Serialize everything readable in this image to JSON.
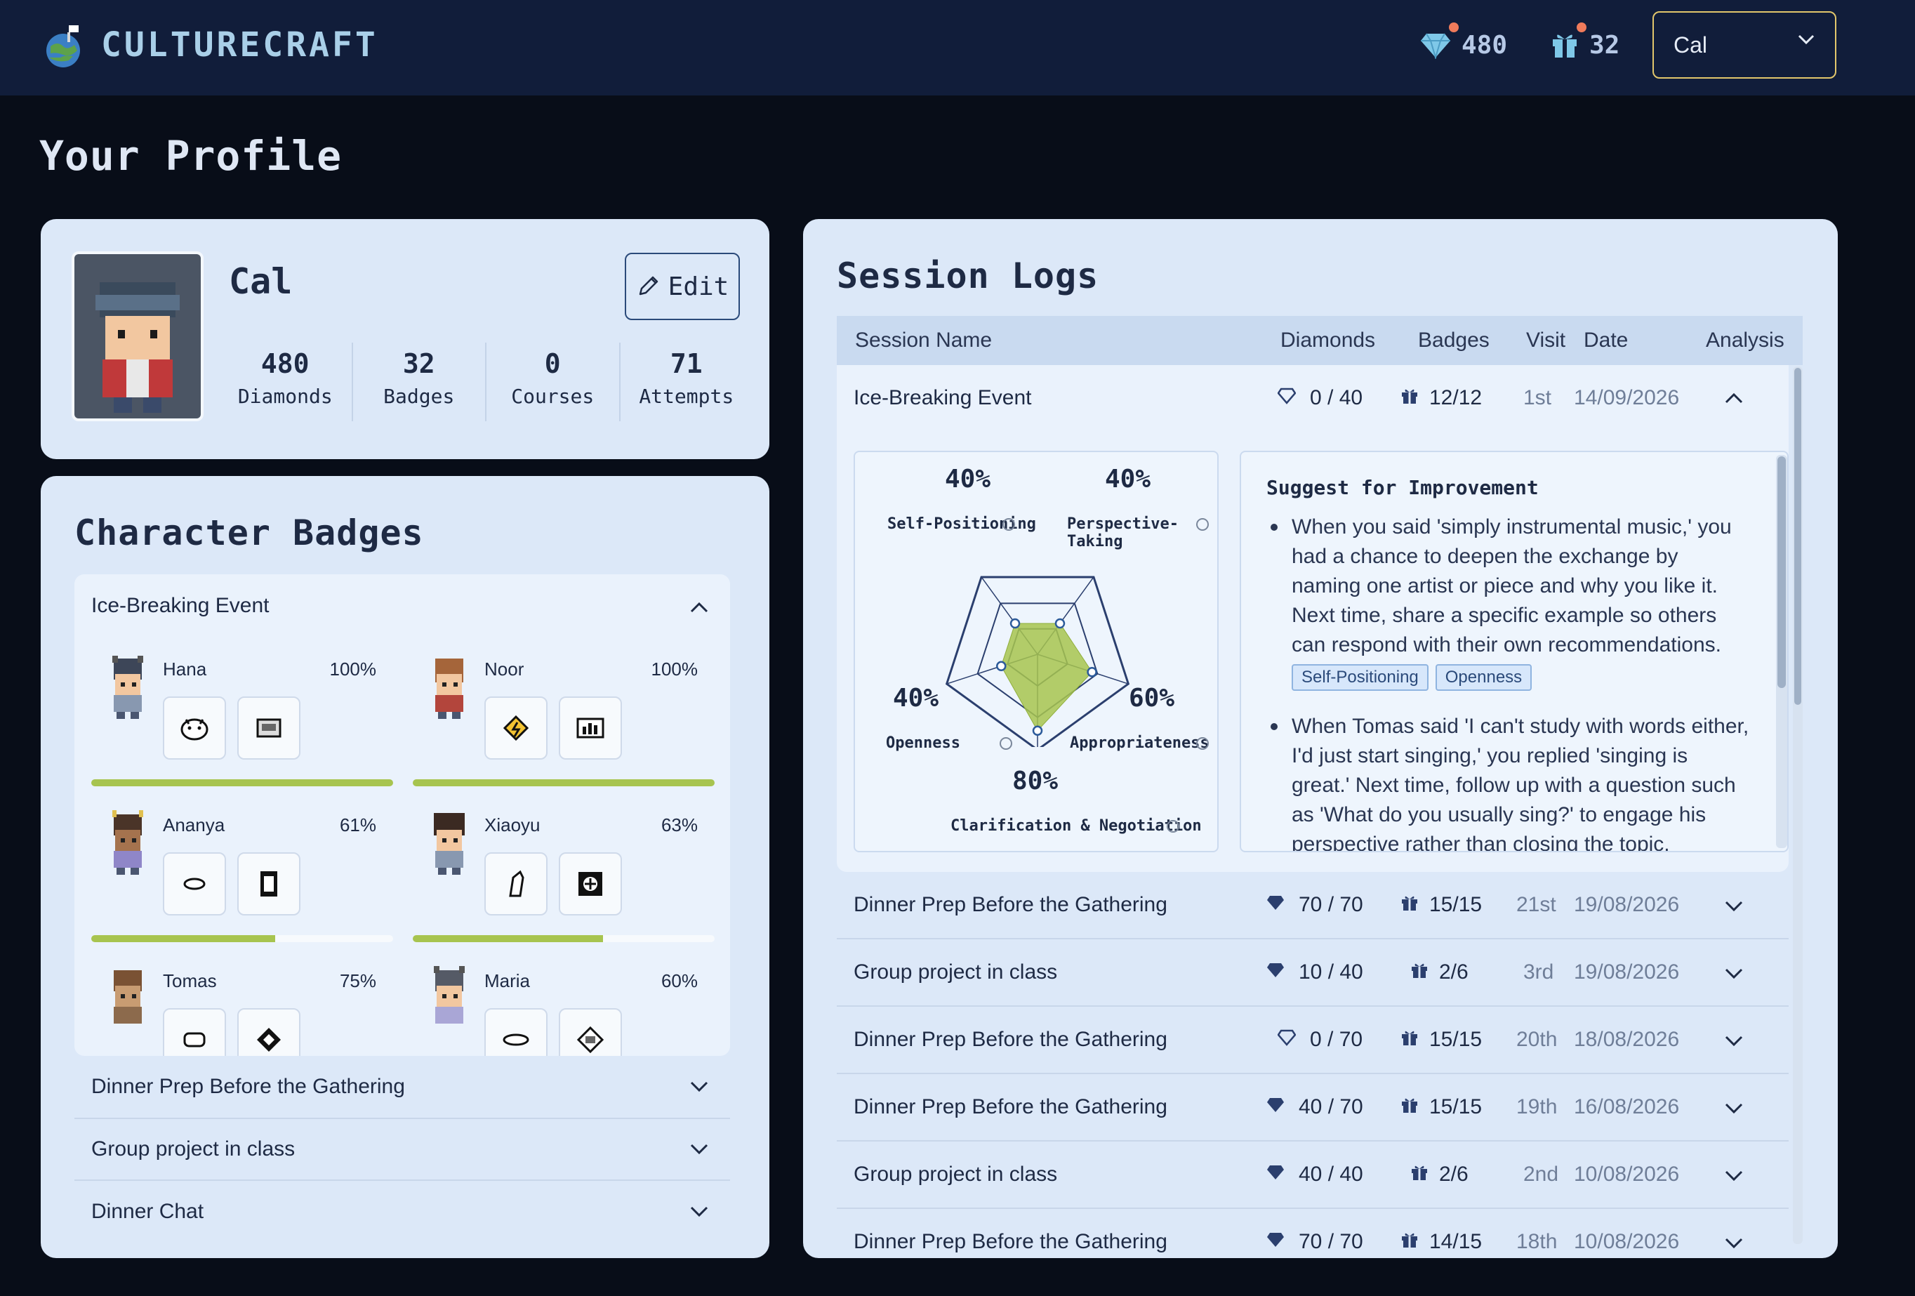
{
  "app": {
    "name": "CULTURECRAFT",
    "diamonds": "480",
    "badges": "32",
    "user_select": "Cal"
  },
  "page_title": "Your Profile",
  "profile": {
    "name": "Cal",
    "edit_label": "Edit",
    "stats": [
      {
        "value": "480",
        "label": "Diamonds"
      },
      {
        "value": "32",
        "label": "Badges"
      },
      {
        "value": "0",
        "label": "Courses"
      },
      {
        "value": "71",
        "label": "Attempts"
      }
    ]
  },
  "character_badges": {
    "title": "Character Badges",
    "open_section": "Ice-Breaking Event",
    "characters": [
      {
        "name": "Hana",
        "pct": "100%",
        "progress": 1.0
      },
      {
        "name": "Noor",
        "pct": "100%",
        "progress": 1.0
      },
      {
        "name": "Ananya",
        "pct": "61%",
        "progress": 0.61
      },
      {
        "name": "Xiaoyu",
        "pct": "63%",
        "progress": 0.63
      },
      {
        "name": "Tomas",
        "pct": "75%",
        "progress": 0.75
      },
      {
        "name": "Maria",
        "pct": "60%",
        "progress": 0.6
      }
    ],
    "collapsed_sections": [
      "Dinner Prep Before the Gathering",
      "Group project in class",
      "Dinner Chat"
    ]
  },
  "session_logs": {
    "title": "Session Logs",
    "columns": [
      "Session Name",
      "Diamonds",
      "Badges",
      "Visit",
      "Date",
      "Analysis"
    ],
    "expanded_row": {
      "name": "Ice-Breaking Event",
      "diamonds": "0 / 40",
      "badges": "12/12",
      "visit": "1st",
      "date": "14/09/2026"
    },
    "radar": {
      "axes": [
        {
          "label": "Self-Positioning",
          "pct": "40%",
          "value": 40
        },
        {
          "label": "Perspective-Taking",
          "pct": "40%",
          "value": 40
        },
        {
          "label": "Appropriateness",
          "pct": "60%",
          "value": 60
        },
        {
          "label": "Clarification & Negotiation",
          "pct": "80%",
          "value": 80
        },
        {
          "label": "Openness",
          "pct": "40%",
          "value": 40
        }
      ],
      "max": 100
    },
    "suggestions": {
      "title": "Suggest for Improvement",
      "items": [
        {
          "text": "When you said 'simply instrumental music,' you had a chance to deepen the exchange by naming one artist or piece and why you like it. Next time, share a specific example so others can respond with their own recommendations.",
          "tags": [
            "Self-Positioning",
            "Openness"
          ]
        },
        {
          "text": "When Tomas said 'I can't study with words either, I'd just start singing,' you replied 'singing is great.' Next time, follow up with a question such as 'What do you usually sing?' to engage his perspective rather than closing the topic.",
          "tags": []
        }
      ]
    },
    "rows": [
      {
        "name": "Dinner Prep Before the Gathering",
        "diamonds": "70 / 70",
        "badges": "15/15",
        "visit": "21st",
        "date": "19/08/2026",
        "filled": true
      },
      {
        "name": "Group project in class",
        "diamonds": "10 / 40",
        "badges": "2/6",
        "visit": "3rd",
        "date": "19/08/2026",
        "filled": true
      },
      {
        "name": "Dinner Prep Before the Gathering",
        "diamonds": "0 / 70",
        "badges": "15/15",
        "visit": "20th",
        "date": "18/08/2026",
        "filled": false
      },
      {
        "name": "Dinner Prep Before the Gathering",
        "diamonds": "40 / 70",
        "badges": "15/15",
        "visit": "19th",
        "date": "16/08/2026",
        "filled": true
      },
      {
        "name": "Group project in class",
        "diamonds": "40 / 40",
        "badges": "2/6",
        "visit": "2nd",
        "date": "10/08/2026",
        "filled": true
      },
      {
        "name": "Dinner Prep Before the Gathering",
        "diamonds": "70 / 70",
        "badges": "14/15",
        "visit": "18th",
        "date": "10/08/2026",
        "filled": true
      }
    ]
  }
}
